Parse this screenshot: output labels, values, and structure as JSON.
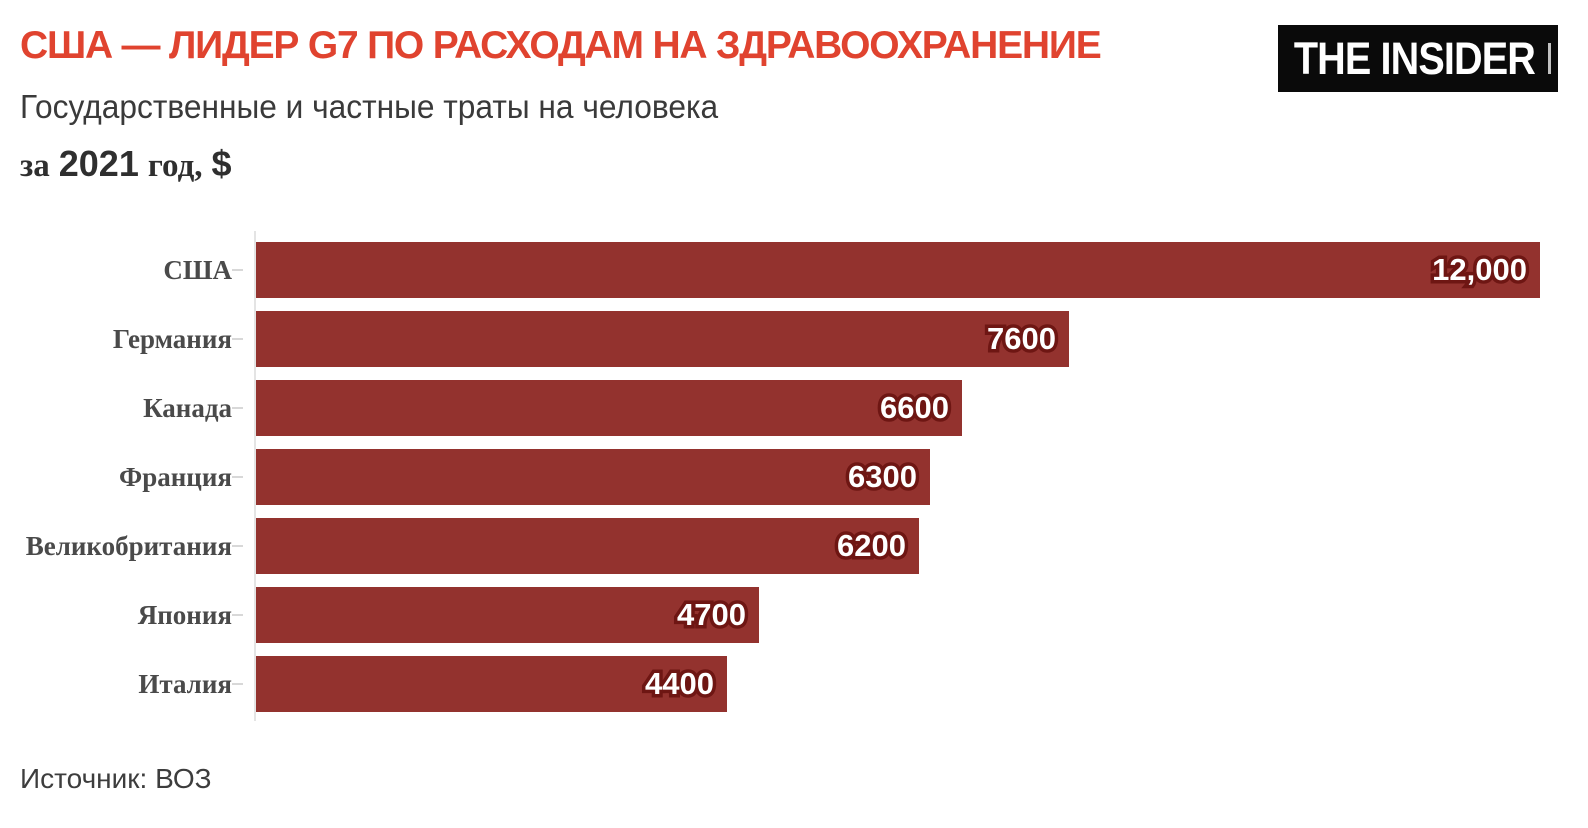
{
  "header": {
    "title": "США — ЛИДЕР G7 ПО РАСХОДАМ НА ЗДРАВООХРАНЕНИЕ",
    "subtitle": "Государственные и частные траты на человека",
    "period": {
      "part1": "за",
      "part2": "2021",
      "part3": "год,",
      "part4": "$"
    },
    "logo_text": "THE INSIDER"
  },
  "footer": {
    "source": "Источник: ВОЗ"
  },
  "colors": {
    "title": "#E0432F",
    "bar": "#93322E",
    "value_text": "#FFFFFF",
    "value_outline": "#6E1613",
    "category_label": "#4A4A4A",
    "subtitle_text": "#3A3A3A",
    "axis": "#E4E4E4",
    "tick": "#D8D8D8",
    "logo_bg": "#0A0A0A",
    "logo_text": "#FFFFFF",
    "background": "#FFFFFF"
  },
  "chart_data": {
    "type": "bar",
    "orientation": "horizontal",
    "title": "США — ЛИДЕР G7 ПО РАСХОДАМ НА ЗДРАВООХРАНЕНИЕ",
    "subtitle": "Государственные и частные траты на человека",
    "unit_note": "за 2021 год, $",
    "categories": [
      "США",
      "Германия",
      "Канада",
      "Франция",
      "Великобритания",
      "Япония",
      "Италия"
    ],
    "values": [
      12000,
      7600,
      6600,
      6300,
      6200,
      4700,
      4400
    ],
    "value_labels": [
      "12,000",
      "7600",
      "6600",
      "6300",
      "6200",
      "4700",
      "4400"
    ],
    "xlim": [
      0,
      12000
    ],
    "grid": false,
    "legend": false,
    "value_label_position": "inside-right",
    "source": "Источник: ВОЗ"
  }
}
